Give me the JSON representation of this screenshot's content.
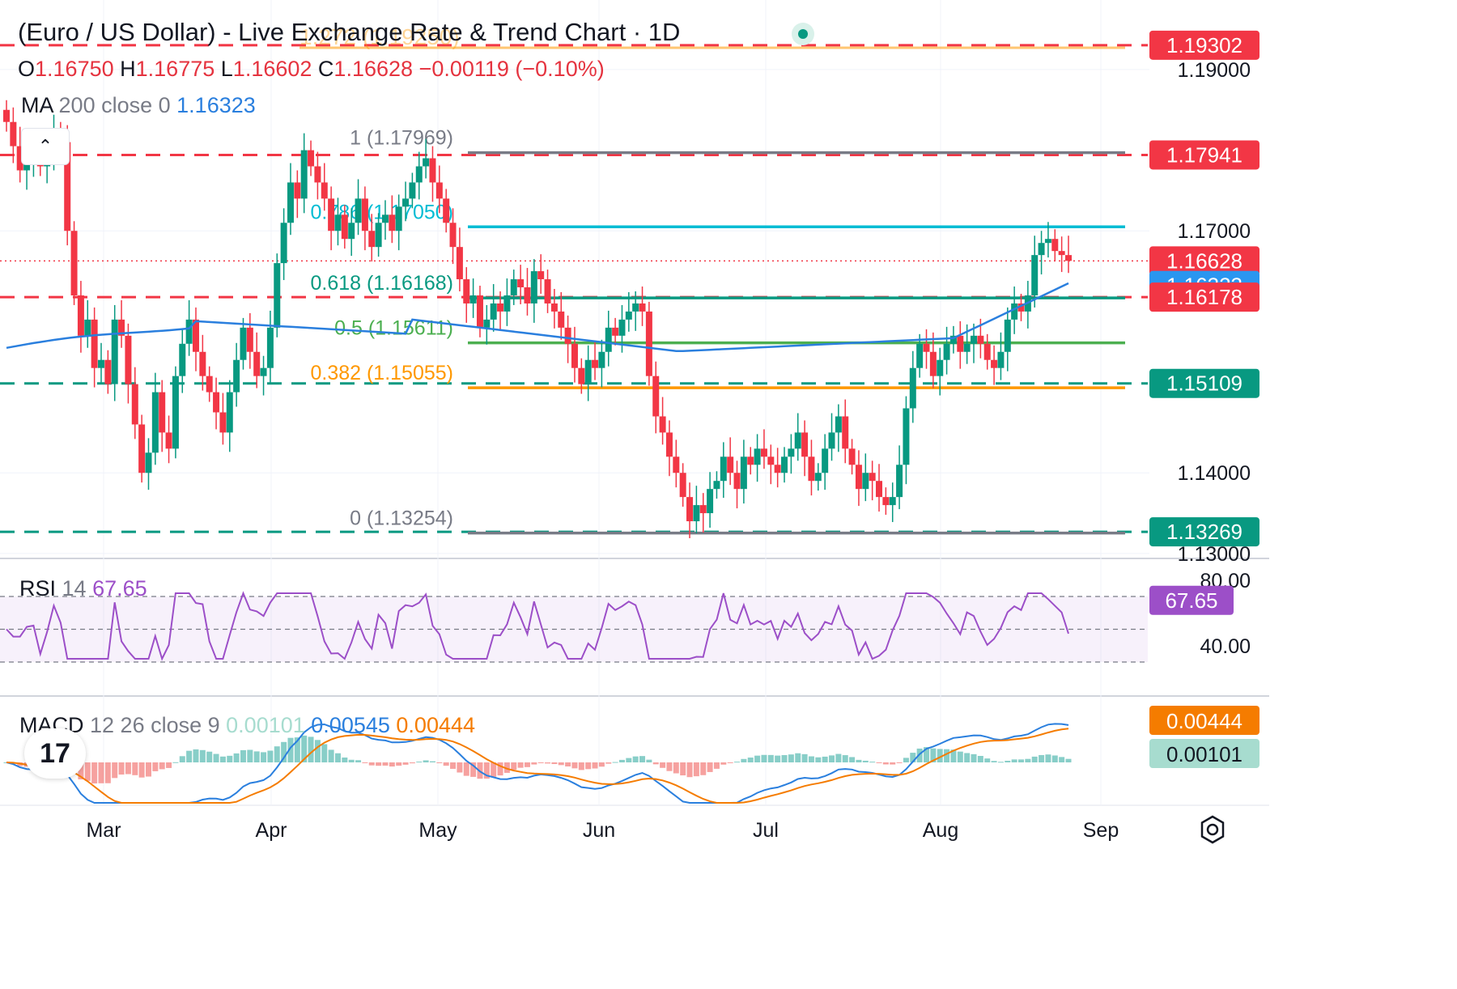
{
  "header": {
    "title": "(Euro / US Dollar) - Live Exchange Rate & Trend Chart · 1D",
    "o_label": "O",
    "o": "1.16750",
    "h_label": "H",
    "h": "1.16775",
    "l_label": "L",
    "l": "1.16602",
    "c_label": "C",
    "c": "1.16628",
    "change": "−0.00119 (−0.10%)",
    "ma_label": "MA",
    "ma_params": "200 close 0",
    "ma_value": "1.16323",
    "rsi_label": "RSI",
    "rsi_params": "14",
    "rsi_value": "67.65",
    "macd_label": "MACD",
    "macd_params": "12 26 close 9",
    "macd_hist": "0.00101",
    "macd_line": "0.00545",
    "macd_signal": "0.00444"
  },
  "colors": {
    "up": "#089981",
    "down": "#f23645",
    "ma": "#2a7fde",
    "rsi": "#9c4fc8",
    "macd_line": "#2a7fde",
    "signal_line": "#f57c00",
    "fib_1": "#787b86",
    "fib_786": "#00bcd4",
    "fib_618": "#089981",
    "fib_5": "#4caf50",
    "fib_382": "#ff9800",
    "fib_0": "#787b86"
  },
  "chart_data": {
    "type": "candlestick",
    "timeframe": "1D",
    "x_axis_labels": [
      "Mar",
      "Apr",
      "May",
      "Jun",
      "Jul",
      "Aug",
      "Sep"
    ],
    "price_axis_labels": [
      "1.19000",
      "1.17000",
      "1.14000",
      "1.13000"
    ],
    "price_range": [
      1.1285,
      1.1975
    ],
    "current_price": 1.16628,
    "ohlc": {
      "open": 1.1675,
      "high": 1.16775,
      "low": 1.16602,
      "close": 1.16628
    },
    "key_levels": [
      {
        "label": "1.19302",
        "price": 1.19302,
        "color": "#f23645",
        "style": "dashed"
      },
      {
        "label": "1.17941",
        "price": 1.17941,
        "color": "#f23645",
        "style": "dashed"
      },
      {
        "label": "1.16628",
        "price": 1.16628,
        "color": "#f23645",
        "style": "dotted"
      },
      {
        "label": "1.16323",
        "price": 1.16323,
        "color": "#2a7fde",
        "style": "ma"
      },
      {
        "label": "1.16178",
        "price": 1.16178,
        "color": "#f23645",
        "style": "dashed"
      },
      {
        "label": "1.15109",
        "price": 1.15109,
        "color": "#089981",
        "style": "dashed"
      },
      {
        "label": "1.13269",
        "price": 1.13269,
        "color": "#089981",
        "style": "dashed"
      }
    ],
    "fibonacci": [
      {
        "ratio": "1",
        "label": "1 (1.17969)",
        "price": 1.17969,
        "color": "#787b86"
      },
      {
        "ratio": "0.786",
        "label": "0.786 (1.17050)",
        "price": 1.1705,
        "color": "#00bcd4"
      },
      {
        "ratio": "0.618",
        "label": "0.618 (1.16168)",
        "price": 1.16168,
        "color": "#089981"
      },
      {
        "ratio": "0.5",
        "label": "0.5 (1.15611)",
        "price": 1.15611,
        "color": "#4caf50"
      },
      {
        "ratio": "0.382",
        "label": "0.382 (1.15055)",
        "price": 1.15055,
        "color": "#ff9800"
      },
      {
        "ratio": "0",
        "label": "0 (1.13254)",
        "price": 1.13254,
        "color": "#787b86"
      },
      {
        "ratio": "1.272",
        "label": "1.272 (1.19250)",
        "price": 1.1925,
        "color": "#ff9800"
      }
    ],
    "ma200": {
      "period": 200,
      "value": 1.16323
    },
    "closes": [
      1.1835,
      1.1805,
      1.1775,
      1.1785,
      1.18,
      1.178,
      1.179,
      1.182,
      1.181,
      1.17,
      1.162,
      1.157,
      1.159,
      1.153,
      1.154,
      1.151,
      1.159,
      1.157,
      1.151,
      1.146,
      1.14,
      1.1425,
      1.15,
      1.145,
      1.143,
      1.152,
      1.156,
      1.159,
      1.155,
      1.152,
      1.15,
      1.1475,
      1.145,
      1.15,
      1.154,
      1.158,
      1.155,
      1.152,
      1.153,
      1.158,
      1.166,
      1.171,
      1.176,
      1.174,
      1.18,
      1.178,
      1.176,
      1.174,
      1.17,
      1.172,
      1.169,
      1.171,
      1.174,
      1.17,
      1.168,
      1.171,
      1.172,
      1.17,
      1.173,
      1.174,
      1.176,
      1.178,
      1.179,
      1.176,
      1.174,
      1.171,
      1.168,
      1.164,
      1.161,
      1.162,
      1.158,
      1.159,
      1.161,
      1.16,
      1.162,
      1.164,
      1.163,
      1.161,
      1.165,
      1.164,
      1.161,
      1.16,
      1.158,
      1.156,
      1.153,
      1.151,
      1.154,
      1.153,
      1.155,
      1.158,
      1.157,
      1.159,
      1.16,
      1.161,
      1.16,
      1.152,
      1.147,
      1.145,
      1.142,
      1.14,
      1.137,
      1.134,
      1.136,
      1.135,
      1.138,
      1.139,
      1.142,
      1.14,
      1.138,
      1.142,
      1.141,
      1.143,
      1.142,
      1.141,
      1.14,
      1.142,
      1.143,
      1.145,
      1.142,
      1.139,
      1.14,
      1.143,
      1.145,
      1.147,
      1.143,
      1.141,
      1.138,
      1.14,
      1.139,
      1.137,
      1.136,
      1.137,
      1.141,
      1.148,
      1.153,
      1.156,
      1.155,
      1.152,
      1.154,
      1.156,
      1.157,
      1.155,
      1.156,
      1.157,
      1.156,
      1.154,
      1.153,
      1.155,
      1.159,
      1.161,
      1.16,
      1.162,
      1.167,
      1.1685,
      1.169,
      1.1675,
      1.167,
      1.16628
    ],
    "rsi": {
      "period": 14,
      "value": 67.65,
      "levels": [
        70,
        50,
        30
      ],
      "axis_labels": [
        "80.00",
        "40.00"
      ]
    },
    "macd": {
      "fast": 12,
      "slow": 26,
      "signal": 9,
      "histogram": 0.00101,
      "macd": 0.00545,
      "signal_value": 0.00444
    }
  }
}
